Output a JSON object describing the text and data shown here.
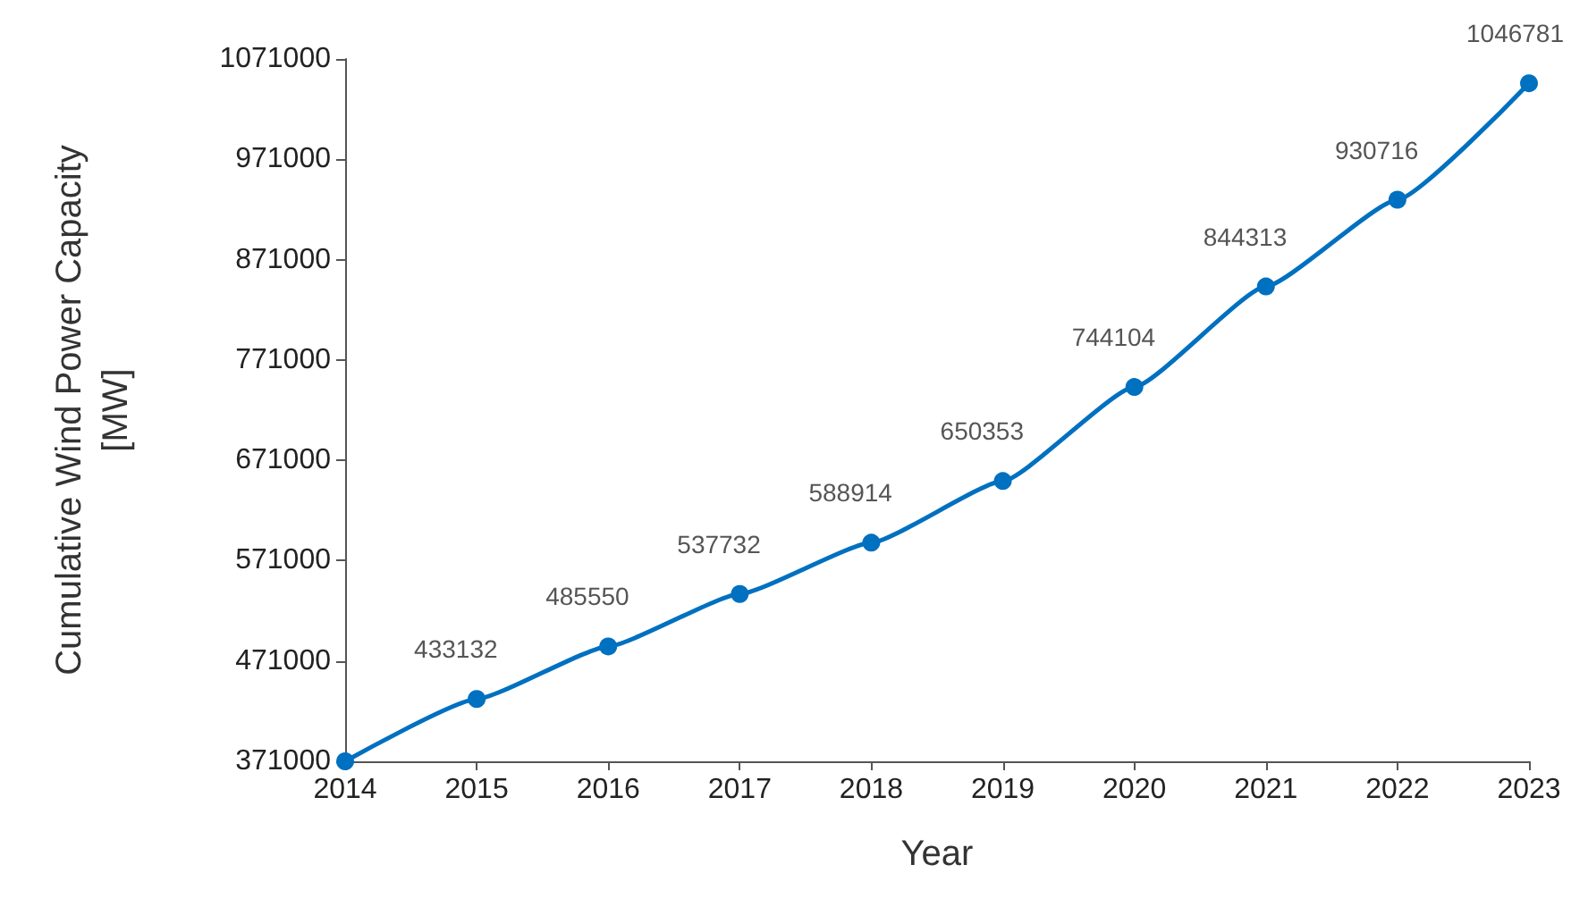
{
  "chart_data": {
    "type": "line",
    "xlabel": "Year",
    "ylabel": "Cumulative Wind Power Capacity\n[MW]",
    "x": [
      2014,
      2015,
      2016,
      2017,
      2018,
      2019,
      2020,
      2021,
      2022,
      2023
    ],
    "series": [
      {
        "color": "#0070c0",
        "values": [
          371000,
          433132,
          485550,
          537732,
          588914,
          650353,
          744104,
          844313,
          930716,
          1046781
        ],
        "value_labels": [
          null,
          "433132",
          "485550",
          "537732",
          "588914",
          "650353",
          "744104",
          "844313",
          "930716",
          "1046781"
        ]
      }
    ],
    "xlim": [
      2014,
      2023
    ],
    "xticks": [
      2014,
      2015,
      2016,
      2017,
      2018,
      2019,
      2020,
      2021,
      2022,
      2023
    ],
    "ylim": [
      371000,
      1071000
    ],
    "yticks": [
      371000,
      471000,
      571000,
      671000,
      771000,
      871000,
      971000,
      1071000
    ],
    "grid": false,
    "marker": "circle",
    "line_style": "solid"
  }
}
